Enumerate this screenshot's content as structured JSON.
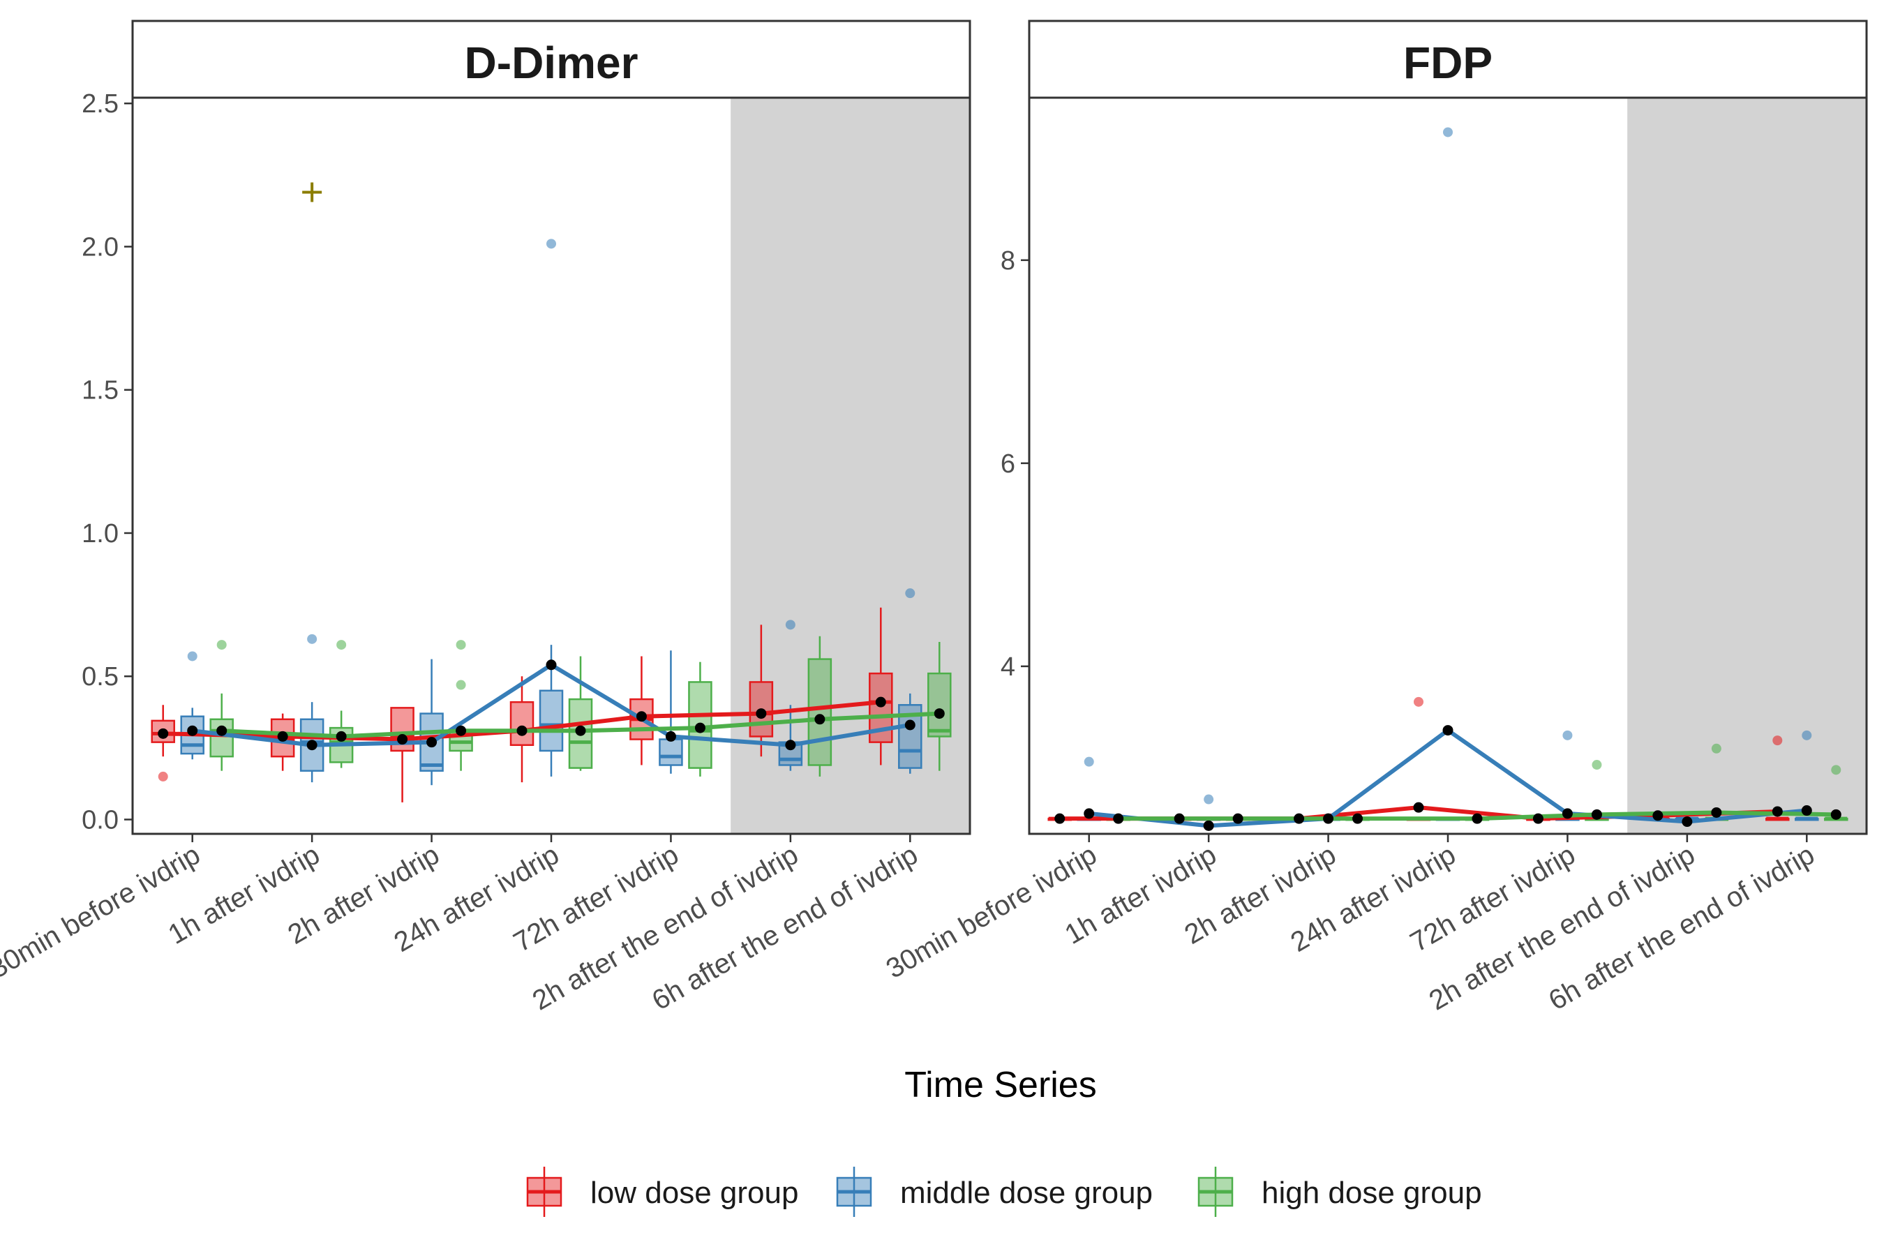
{
  "figure": {
    "xlabel": "Time Series",
    "shaded_region": "last two time points (after the end of ivdrip)"
  },
  "chart_data": [
    {
      "type": "box",
      "title": "D-Dimer",
      "xlabel": "Time Series",
      "ylabel": "",
      "ylim": [
        -0.05,
        2.52
      ],
      "yticks": [
        0.0,
        0.5,
        1.0,
        1.5,
        2.0,
        2.5
      ],
      "ytick_labels": [
        "0.0",
        "0.5",
        "1.0",
        "1.5",
        "2.0",
        "2.5"
      ],
      "categories": [
        "30min before ivdrip",
        "1h after ivdrip",
        "2h after ivdrip",
        "24h after ivdrip",
        "72h after ivdrip",
        "2h after the end of ivdrip",
        "6h after the end of ivdrip"
      ],
      "shaded_categories": [
        5,
        6
      ],
      "series": [
        {
          "name": "low dose group",
          "color": "#E41A1C",
          "boxes": [
            {
              "min": 0.22,
              "q1": 0.27,
              "median": 0.3,
              "q3": 0.345,
              "max": 0.4,
              "outliers": [
                0.15
              ]
            },
            {
              "min": 0.17,
              "q1": 0.22,
              "median": 0.28,
              "q3": 0.35,
              "max": 0.37,
              "outliers": []
            },
            {
              "min": 0.06,
              "q1": 0.24,
              "median": 0.29,
              "q3": 0.39,
              "max": 0.39,
              "outliers": []
            },
            {
              "min": 0.13,
              "q1": 0.26,
              "median": 0.31,
              "q3": 0.41,
              "max": 0.5,
              "outliers": []
            },
            {
              "min": 0.19,
              "q1": 0.28,
              "median": 0.35,
              "q3": 0.42,
              "max": 0.57,
              "outliers": []
            },
            {
              "min": 0.22,
              "q1": 0.29,
              "median": 0.37,
              "q3": 0.48,
              "max": 0.68,
              "outliers": []
            },
            {
              "min": 0.19,
              "q1": 0.27,
              "median": 0.41,
              "q3": 0.51,
              "max": 0.74,
              "outliers": []
            }
          ],
          "means": [
            0.3,
            0.29,
            0.28,
            0.31,
            0.36,
            0.37,
            0.41
          ]
        },
        {
          "name": "middle dose group",
          "color": "#377EB8",
          "boxes": [
            {
              "min": 0.21,
              "q1": 0.23,
              "median": 0.26,
              "q3": 0.36,
              "max": 0.39,
              "outliers": [
                0.57
              ]
            },
            {
              "min": 0.13,
              "q1": 0.17,
              "median": 0.27,
              "q3": 0.35,
              "max": 0.41,
              "outliers": [
                0.63
              ]
            },
            {
              "min": 0.12,
              "q1": 0.17,
              "median": 0.19,
              "q3": 0.37,
              "max": 0.56,
              "outliers": []
            },
            {
              "min": 0.15,
              "q1": 0.24,
              "median": 0.33,
              "q3": 0.45,
              "max": 0.61,
              "outliers": [
                2.01
              ]
            },
            {
              "min": 0.16,
              "q1": 0.19,
              "median": 0.22,
              "q3": 0.28,
              "max": 0.59,
              "outliers": []
            },
            {
              "min": 0.17,
              "q1": 0.19,
              "median": 0.21,
              "q3": 0.27,
              "max": 0.4,
              "outliers": [
                0.68
              ]
            },
            {
              "min": 0.16,
              "q1": 0.18,
              "median": 0.24,
              "q3": 0.4,
              "max": 0.44,
              "outliers": [
                0.79
              ]
            }
          ],
          "means": [
            0.31,
            0.26,
            0.27,
            0.54,
            0.29,
            0.26,
            0.33
          ]
        },
        {
          "name": "high dose group",
          "color": "#4DAF4A",
          "boxes": [
            {
              "min": 0.17,
              "q1": 0.22,
              "median": 0.31,
              "q3": 0.35,
              "max": 0.44,
              "outliers": [
                0.61
              ]
            },
            {
              "min": 0.18,
              "q1": 0.2,
              "median": 0.27,
              "q3": 0.32,
              "max": 0.38,
              "outliers": [
                0.61
              ]
            },
            {
              "min": 0.17,
              "q1": 0.24,
              "median": 0.27,
              "q3": 0.31,
              "max": 0.32,
              "outliers": [
                0.61,
                0.47
              ]
            },
            {
              "min": 0.17,
              "q1": 0.18,
              "median": 0.27,
              "q3": 0.42,
              "max": 0.57,
              "outliers": []
            },
            {
              "min": 0.15,
              "q1": 0.18,
              "median": 0.31,
              "q3": 0.48,
              "max": 0.55,
              "outliers": []
            },
            {
              "min": 0.15,
              "q1": 0.19,
              "median": 0.35,
              "q3": 0.56,
              "max": 0.64,
              "outliers": []
            },
            {
              "min": 0.17,
              "q1": 0.29,
              "median": 0.31,
              "q3": 0.51,
              "max": 0.62,
              "outliers": []
            }
          ],
          "means": [
            0.31,
            0.29,
            0.31,
            0.31,
            0.32,
            0.35,
            0.37
          ]
        }
      ],
      "annotations": [
        {
          "type": "plus",
          "x_category": 1,
          "y": 2.19,
          "color": "#8B7D00"
        }
      ]
    },
    {
      "type": "box",
      "title": "FDP",
      "xlabel": "Time Series",
      "ylabel": "",
      "ylim": [
        2.35,
        9.6
      ],
      "yticks": [
        4,
        6,
        8
      ],
      "ytick_labels": [
        "4",
        "6",
        "8"
      ],
      "categories": [
        "30min before ivdrip",
        "1h after ivdrip",
        "2h after ivdrip",
        "24h after ivdrip",
        "72h after ivdrip",
        "2h after the end of ivdrip",
        "6h after the end of ivdrip"
      ],
      "shaded_categories": [
        5,
        6
      ],
      "series": [
        {
          "name": "low dose group",
          "color": "#E41A1C",
          "boxes": [
            {
              "min": 2.5,
              "q1": 2.5,
              "median": 2.5,
              "q3": 2.5,
              "max": 2.5,
              "outliers": []
            },
            {
              "min": 2.5,
              "q1": 2.5,
              "median": 2.5,
              "q3": 2.5,
              "max": 2.5,
              "outliers": []
            },
            {
              "min": 2.5,
              "q1": 2.5,
              "median": 2.5,
              "q3": 2.5,
              "max": 2.5,
              "outliers": []
            },
            {
              "min": 2.5,
              "q1": 2.5,
              "median": 2.5,
              "q3": 2.5,
              "max": 2.5,
              "outliers": [
                3.65
              ]
            },
            {
              "min": 2.5,
              "q1": 2.5,
              "median": 2.5,
              "q3": 2.5,
              "max": 2.5,
              "outliers": []
            },
            {
              "min": 2.5,
              "q1": 2.5,
              "median": 2.5,
              "q3": 2.5,
              "max": 2.5,
              "outliers": []
            },
            {
              "min": 2.5,
              "q1": 2.5,
              "median": 2.5,
              "q3": 2.5,
              "max": 2.5,
              "outliers": [
                3.27
              ]
            }
          ],
          "means": [
            2.5,
            2.5,
            2.5,
            2.61,
            2.5,
            2.53,
            2.57
          ]
        },
        {
          "name": "middle dose group",
          "color": "#377EB8",
          "boxes": [
            {
              "min": 2.5,
              "q1": 2.5,
              "median": 2.5,
              "q3": 2.5,
              "max": 2.5,
              "outliers": [
                3.06
              ]
            },
            {
              "min": 2.5,
              "q1": 2.5,
              "median": 2.5,
              "q3": 2.5,
              "max": 2.5,
              "outliers": [
                2.69
              ]
            },
            {
              "min": 2.5,
              "q1": 2.5,
              "median": 2.5,
              "q3": 2.5,
              "max": 2.5,
              "outliers": []
            },
            {
              "min": 2.5,
              "q1": 2.5,
              "median": 2.5,
              "q3": 2.5,
              "max": 2.5,
              "outliers": [
                9.26
              ]
            },
            {
              "min": 2.5,
              "q1": 2.5,
              "median": 2.5,
              "q3": 2.5,
              "max": 2.5,
              "outliers": [
                3.32
              ]
            },
            {
              "min": 2.5,
              "q1": 2.5,
              "median": 2.5,
              "q3": 2.5,
              "max": 2.5,
              "outliers": []
            },
            {
              "min": 2.5,
              "q1": 2.5,
              "median": 2.5,
              "q3": 2.5,
              "max": 2.5,
              "outliers": [
                3.32
              ]
            }
          ],
          "means": [
            2.55,
            2.43,
            2.5,
            3.37,
            2.55,
            2.47,
            2.58
          ]
        },
        {
          "name": "high dose group",
          "color": "#4DAF4A",
          "boxes": [
            {
              "min": 2.5,
              "q1": 2.5,
              "median": 2.5,
              "q3": 2.5,
              "max": 2.5,
              "outliers": []
            },
            {
              "min": 2.5,
              "q1": 2.5,
              "median": 2.5,
              "q3": 2.5,
              "max": 2.5,
              "outliers": []
            },
            {
              "min": 2.5,
              "q1": 2.5,
              "median": 2.5,
              "q3": 2.5,
              "max": 2.5,
              "outliers": []
            },
            {
              "min": 2.5,
              "q1": 2.5,
              "median": 2.5,
              "q3": 2.5,
              "max": 2.5,
              "outliers": []
            },
            {
              "min": 2.5,
              "q1": 2.5,
              "median": 2.5,
              "q3": 2.5,
              "max": 2.5,
              "outliers": [
                3.03
              ]
            },
            {
              "min": 2.5,
              "q1": 2.5,
              "median": 2.5,
              "q3": 2.5,
              "max": 2.5,
              "outliers": [
                3.19
              ]
            },
            {
              "min": 2.5,
              "q1": 2.5,
              "median": 2.5,
              "q3": 2.5,
              "max": 2.5,
              "outliers": [
                2.98
              ]
            }
          ],
          "means": [
            2.5,
            2.5,
            2.5,
            2.5,
            2.54,
            2.56,
            2.54
          ]
        }
      ],
      "annotations": []
    }
  ],
  "legend": {
    "placement": "bottom",
    "entries": [
      {
        "name": "low dose group",
        "color": "#E41A1C"
      },
      {
        "name": "middle dose group",
        "color": "#377EB8"
      },
      {
        "name": "high dose group",
        "color": "#4DAF4A"
      }
    ]
  },
  "colors": {
    "mean_point": "#000000",
    "shading": "#D3D3D3",
    "panel_border": "#333333"
  }
}
